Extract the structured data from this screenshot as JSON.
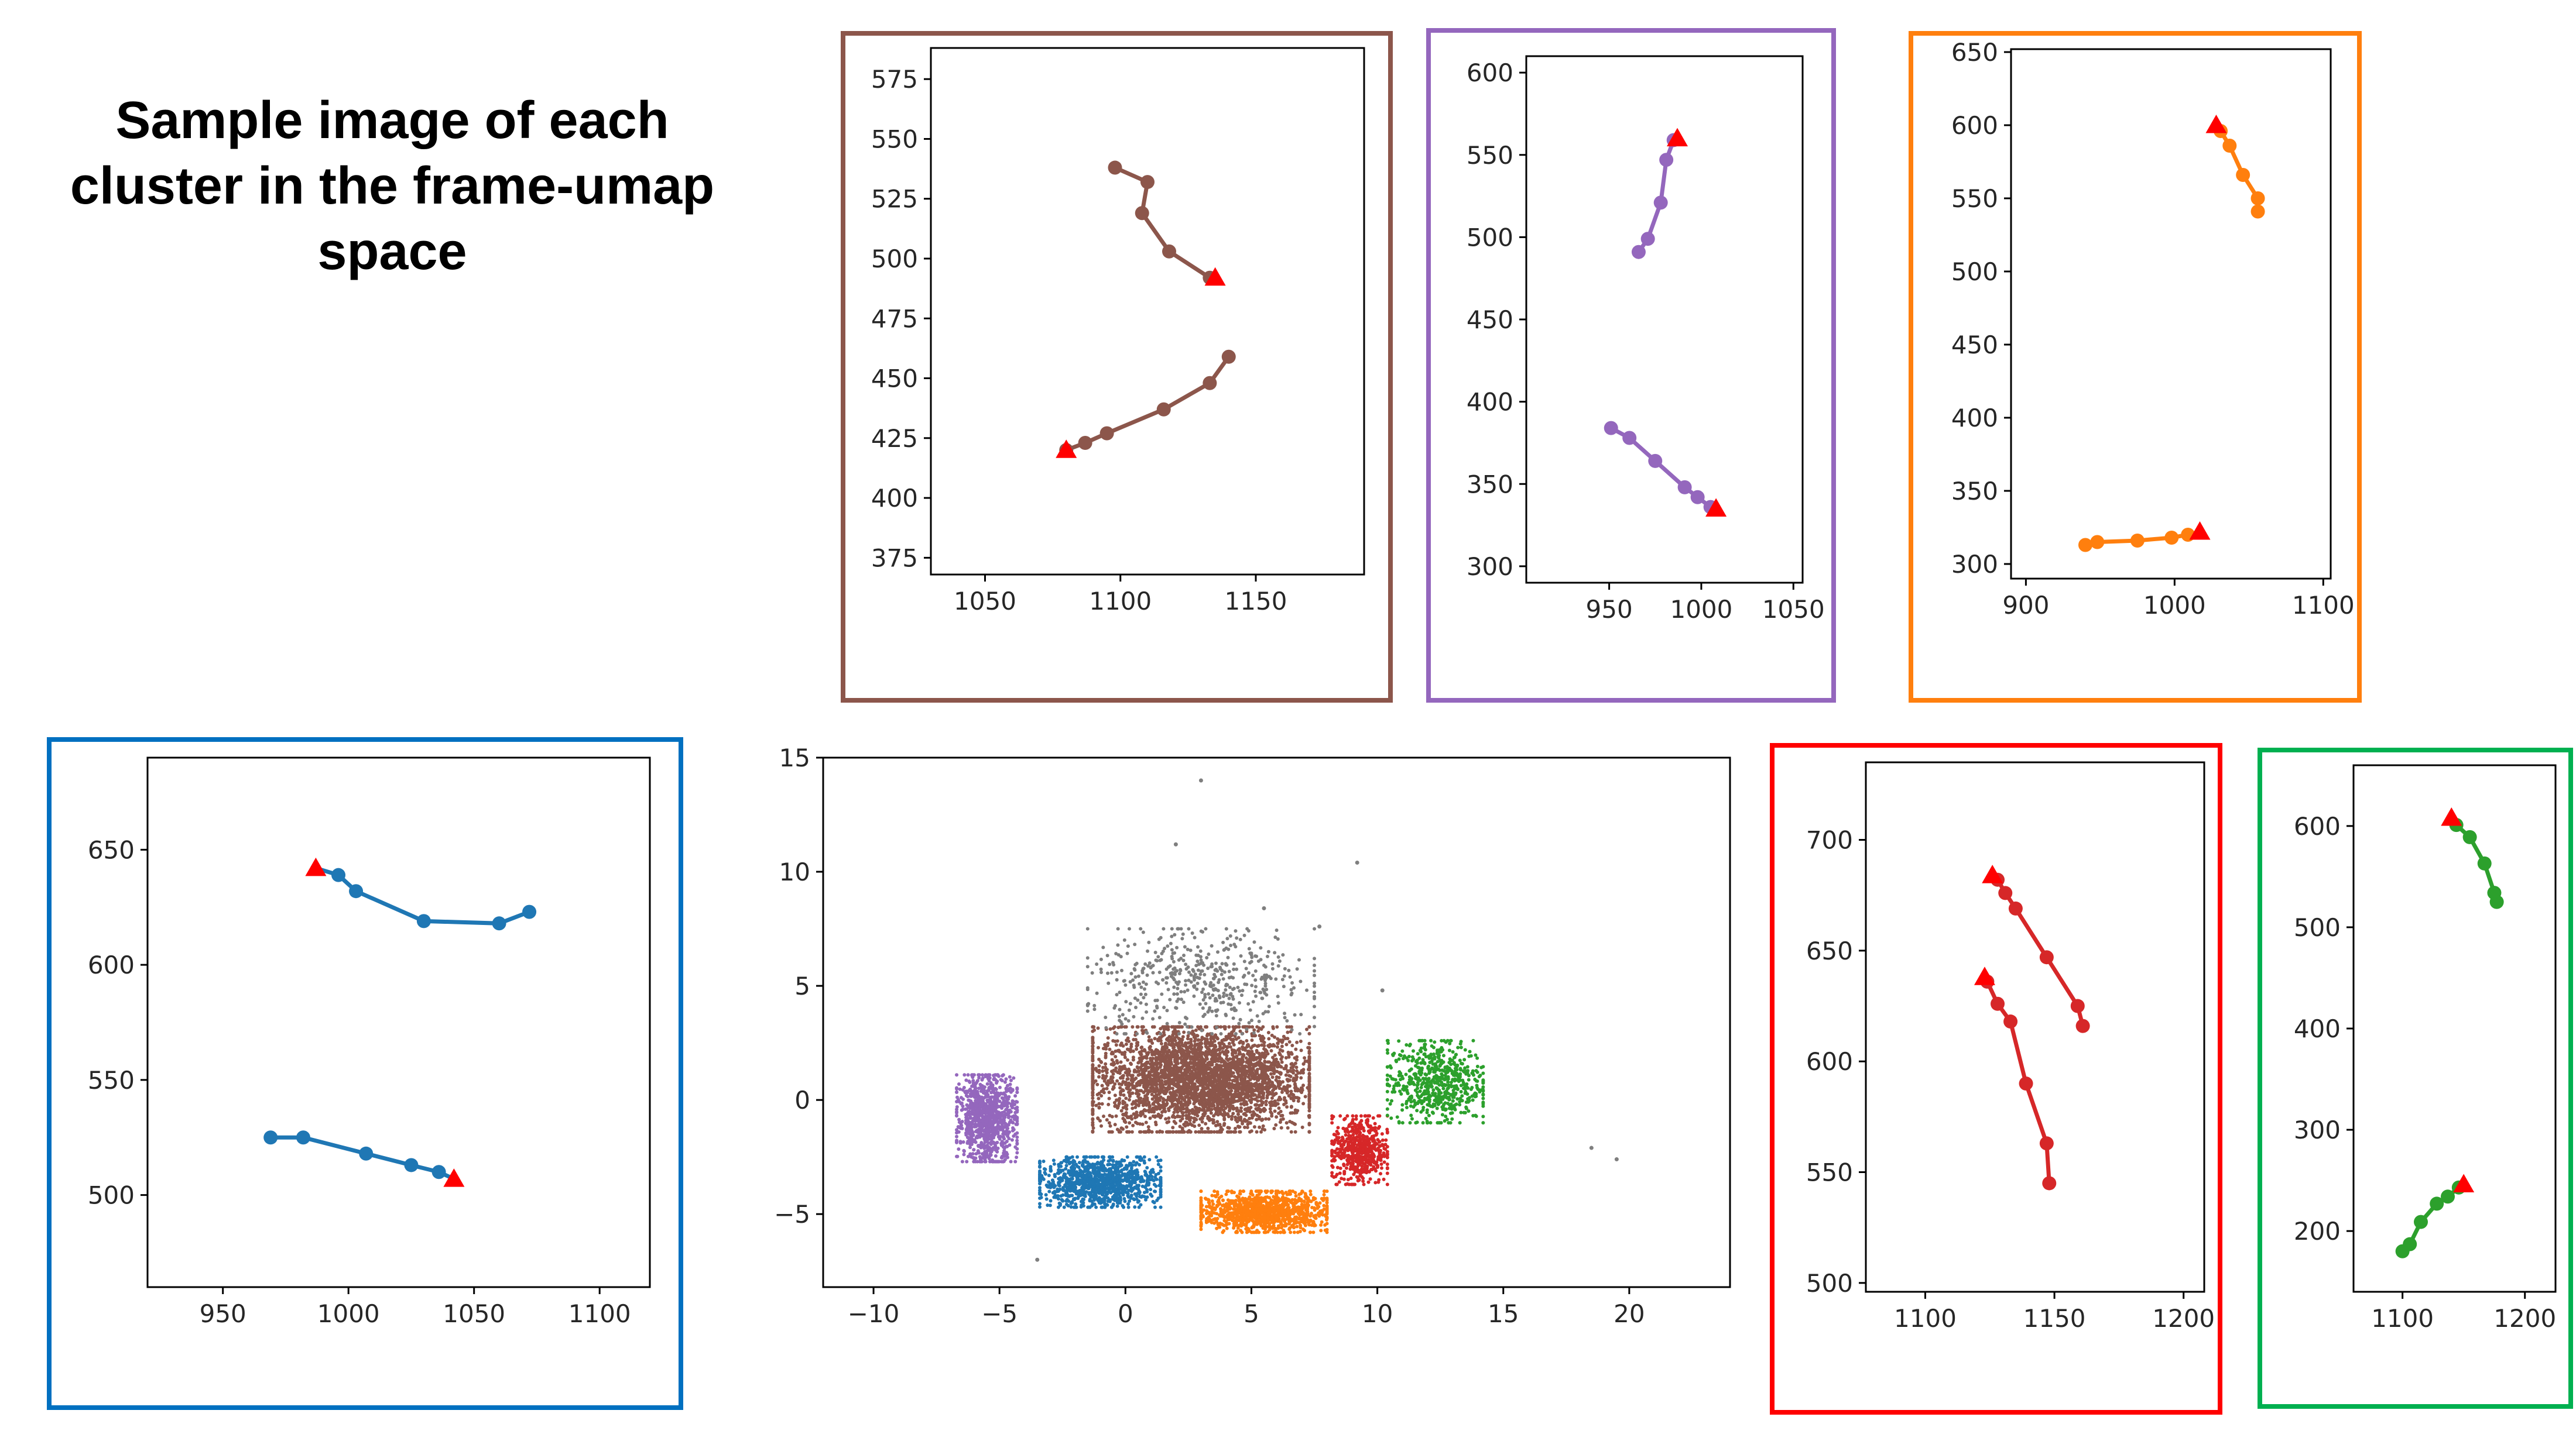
{
  "title": [
    "Sample image of each",
    "cluster in the frame-umap",
    "space"
  ],
  "colors": {
    "brown": "#8c564b",
    "purple": "#9467bd",
    "orange": "#ff7f0e",
    "blue": "#1f77b4",
    "red": "#d62728",
    "green": "#2ca02c",
    "gray": "#7f7f7f",
    "start_marker": "#ff0000",
    "frame_brown": "#8c564b",
    "frame_purple": "#9467bd",
    "frame_orange": "#ff7f0e",
    "frame_blue": "#0070c0",
    "frame_red": "#ff0000",
    "frame_green": "#00b050"
  },
  "chart_data": [
    {
      "id": "brown",
      "type": "line",
      "color": "brown",
      "frame_color": "frame_brown",
      "xlim": [
        1030,
        1190
      ],
      "ylim": [
        368,
        588
      ],
      "xticks": [
        1050,
        1100,
        1150
      ],
      "yticks": [
        375,
        400,
        425,
        450,
        475,
        500,
        525,
        550,
        575
      ],
      "marker": "start point shown as red triangle",
      "series": [
        {
          "x": [
            1098,
            1110,
            1108,
            1118,
            1133
          ],
          "y": [
            538,
            532,
            519,
            503,
            492
          ],
          "start": [
            1135,
            492
          ]
        },
        {
          "x": [
            1140,
            1133,
            1116,
            1095,
            1087,
            1080
          ],
          "y": [
            459,
            448,
            437,
            427,
            423,
            420
          ],
          "start": [
            1080,
            420
          ]
        }
      ]
    },
    {
      "id": "purple",
      "type": "line",
      "color": "purple",
      "frame_color": "frame_purple",
      "xlim": [
        905,
        1055
      ],
      "ylim": [
        290,
        610
      ],
      "xticks": [
        950,
        1000,
        1050
      ],
      "yticks": [
        300,
        350,
        400,
        450,
        500,
        550,
        600
      ],
      "marker": "start point shown as red triangle",
      "series": [
        {
          "x": [
            966,
            971,
            978,
            981,
            985
          ],
          "y": [
            491,
            499,
            521,
            547,
            559
          ],
          "start": [
            987,
            560
          ]
        },
        {
          "x": [
            951,
            961,
            975,
            991,
            998,
            1005
          ],
          "y": [
            384,
            378,
            364,
            348,
            342,
            336
          ],
          "start": [
            1008,
            335
          ]
        }
      ]
    },
    {
      "id": "orange",
      "type": "line",
      "color": "orange",
      "frame_color": "frame_orange",
      "xlim": [
        890,
        1105
      ],
      "ylim": [
        290,
        652
      ],
      "xticks": [
        900,
        1000,
        1100
      ],
      "yticks": [
        300,
        350,
        400,
        450,
        500,
        550,
        600,
        650
      ],
      "marker": "start point shown as red triangle",
      "series": [
        {
          "x": [
            1056,
            1056,
            1046,
            1037,
            1031
          ],
          "y": [
            541,
            550,
            566,
            586,
            596
          ],
          "start": [
            1028,
            600
          ]
        },
        {
          "x": [
            940,
            948,
            975,
            998,
            1009
          ],
          "y": [
            313,
            315,
            316,
            318,
            320
          ],
          "start": [
            1017,
            322
          ]
        }
      ]
    },
    {
      "id": "blue",
      "type": "line",
      "color": "blue",
      "frame_color": "frame_blue",
      "xlim": [
        920,
        1120
      ],
      "ylim": [
        460,
        690
      ],
      "xticks": [
        950,
        1000,
        1050,
        1100
      ],
      "yticks": [
        500,
        550,
        600,
        650
      ],
      "marker": "start point shown as red triangle",
      "series": [
        {
          "x": [
            1072,
            1060,
            1030,
            1003,
            996
          ],
          "y": [
            623,
            618,
            619,
            632,
            639
          ],
          "start": [
            987,
            642
          ]
        },
        {
          "x": [
            969,
            982,
            1007,
            1025,
            1036
          ],
          "y": [
            525,
            525,
            518,
            513,
            510
          ],
          "start": [
            1042,
            507
          ]
        }
      ]
    },
    {
      "id": "umap",
      "type": "scatter",
      "frame_color": null,
      "xlim": [
        -12,
        24
      ],
      "ylim": [
        -8.2,
        15
      ],
      "xticks": [
        -10,
        -5,
        0,
        5,
        10,
        15,
        20
      ],
      "yticks": [
        -5,
        0,
        5,
        10,
        15
      ],
      "clusters": [
        {
          "color": "brown",
          "center": [
            3,
            0.9
          ],
          "spread": [
            4.3,
            2.3
          ],
          "count": 3400
        },
        {
          "color": "purple",
          "center": [
            -5.5,
            -0.8
          ],
          "spread": [
            1.2,
            1.9
          ],
          "count": 1000
        },
        {
          "color": "blue",
          "center": [
            -1,
            -3.6
          ],
          "spread": [
            2.4,
            1.1
          ],
          "count": 1100
        },
        {
          "color": "orange",
          "center": [
            5.5,
            -4.9
          ],
          "spread": [
            2.5,
            0.9
          ],
          "count": 1100
        },
        {
          "color": "red",
          "center": [
            9.3,
            -2.2
          ],
          "spread": [
            1.1,
            1.5
          ],
          "count": 550
        },
        {
          "color": "green",
          "center": [
            12.3,
            0.8
          ],
          "spread": [
            1.9,
            1.8
          ],
          "count": 650
        },
        {
          "color": "gray",
          "center": [
            3,
            5.2
          ],
          "spread": [
            4.5,
            2.3
          ],
          "count": 500
        }
      ],
      "outliers": [
        [
          3,
          14
        ],
        [
          2,
          11.2
        ],
        [
          9.2,
          10.4
        ],
        [
          5.5,
          8.4
        ],
        [
          -3.5,
          -7
        ],
        [
          18.5,
          -2.1
        ],
        [
          19.5,
          -2.6
        ],
        [
          10.2,
          4.8
        ],
        [
          7.7,
          7.6
        ]
      ]
    },
    {
      "id": "red",
      "type": "line",
      "color": "red",
      "frame_color": "frame_red",
      "xlim": [
        1077,
        1208
      ],
      "ylim": [
        496,
        735
      ],
      "xticks": [
        1100,
        1150,
        1200
      ],
      "yticks": [
        500,
        550,
        600,
        650,
        700
      ],
      "marker": "start point shown as red triangle",
      "series": [
        {
          "x": [
            1161,
            1159,
            1147,
            1135,
            1131,
            1128
          ],
          "y": [
            616,
            625,
            647,
            669,
            676,
            682
          ],
          "start": [
            1126,
            684
          ]
        },
        {
          "x": [
            1148,
            1147,
            1139,
            1133,
            1128,
            1124
          ],
          "y": [
            545,
            563,
            590,
            618,
            626,
            636
          ],
          "start": [
            1123,
            638
          ]
        }
      ]
    },
    {
      "id": "green",
      "type": "line",
      "color": "green",
      "frame_color": "frame_green",
      "xlim": [
        1060,
        1225
      ],
      "ylim": [
        140,
        660
      ],
      "xticks": [
        1100,
        1200
      ],
      "yticks": [
        200,
        300,
        400,
        500,
        600
      ],
      "marker": "start point shown as red triangle",
      "series": [
        {
          "x": [
            1177,
            1175,
            1167,
            1155,
            1144
          ],
          "y": [
            525,
            534,
            563,
            589,
            601
          ],
          "start": [
            1140,
            608
          ]
        },
        {
          "x": [
            1100,
            1106,
            1115,
            1128,
            1137,
            1146
          ],
          "y": [
            180,
            187,
            209,
            227,
            234,
            243
          ],
          "start": [
            1150,
            246
          ]
        }
      ]
    }
  ]
}
